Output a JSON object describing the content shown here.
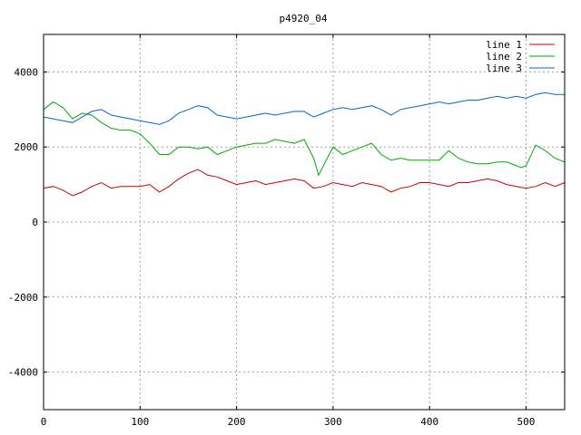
{
  "chart_data": {
    "type": "line",
    "title": "p4920_04",
    "xlabel": "",
    "ylabel": "",
    "xlim": [
      0,
      540
    ],
    "ylim": [
      -5000,
      5000
    ],
    "x_ticks": [
      0,
      100,
      200,
      300,
      400,
      500
    ],
    "y_ticks": [
      -4000,
      -2000,
      0,
      2000,
      4000
    ],
    "grid": true,
    "legend_position": "top-right",
    "series": [
      {
        "name": "line 1",
        "color": "#cc0000",
        "x": [
          0,
          10,
          20,
          30,
          40,
          50,
          60,
          70,
          80,
          90,
          100,
          110,
          120,
          130,
          140,
          150,
          160,
          170,
          180,
          190,
          200,
          210,
          220,
          230,
          240,
          250,
          260,
          270,
          280,
          290,
          300,
          310,
          320,
          330,
          340,
          350,
          360,
          370,
          380,
          390,
          400,
          410,
          420,
          430,
          440,
          450,
          460,
          470,
          480,
          490,
          500,
          510,
          520,
          530,
          540
        ],
        "y": [
          900,
          950,
          850,
          700,
          800,
          950,
          1050,
          900,
          950,
          950,
          950,
          1000,
          800,
          950,
          1150,
          1300,
          1400,
          1250,
          1200,
          1100,
          1000,
          1050,
          1100,
          1000,
          1050,
          1100,
          1150,
          1100,
          900,
          950,
          1050,
          1000,
          950,
          1050,
          1000,
          950,
          800,
          900,
          950,
          1050,
          1050,
          1000,
          950,
          1050,
          1050,
          1100,
          1150,
          1100,
          1000,
          950,
          900,
          950,
          1050,
          950,
          1050
        ]
      },
      {
        "name": "line 2",
        "color": "#00aa00",
        "x": [
          0,
          10,
          20,
          30,
          40,
          50,
          60,
          70,
          80,
          90,
          100,
          110,
          120,
          130,
          140,
          150,
          160,
          170,
          180,
          190,
          200,
          210,
          220,
          230,
          240,
          250,
          260,
          270,
          280,
          285,
          290,
          300,
          310,
          320,
          330,
          340,
          350,
          360,
          370,
          380,
          390,
          400,
          410,
          420,
          430,
          440,
          450,
          460,
          470,
          480,
          490,
          495,
          500,
          510,
          520,
          530,
          540
        ],
        "y": [
          3000,
          3200,
          3050,
          2750,
          2900,
          2850,
          2650,
          2500,
          2450,
          2450,
          2350,
          2100,
          1800,
          1800,
          2000,
          2000,
          1950,
          2000,
          1800,
          1900,
          2000,
          2050,
          2100,
          2100,
          2200,
          2150,
          2100,
          2200,
          1700,
          1250,
          1500,
          2000,
          1800,
          1900,
          2000,
          2100,
          1800,
          1650,
          1700,
          1650,
          1650,
          1650,
          1650,
          1900,
          1700,
          1600,
          1550,
          1550,
          1600,
          1600,
          1500,
          1450,
          1500,
          2050,
          1900,
          1700,
          1600
        ]
      },
      {
        "name": "line 3",
        "color": "#0066cc",
        "x": [
          0,
          10,
          20,
          30,
          40,
          50,
          60,
          70,
          80,
          90,
          100,
          110,
          120,
          130,
          140,
          150,
          160,
          170,
          180,
          190,
          200,
          210,
          220,
          230,
          240,
          250,
          260,
          270,
          280,
          290,
          300,
          310,
          320,
          330,
          340,
          350,
          360,
          370,
          380,
          390,
          400,
          410,
          420,
          430,
          440,
          450,
          460,
          470,
          480,
          490,
          500,
          510,
          520,
          530,
          540
        ],
        "y": [
          2800,
          2750,
          2700,
          2650,
          2800,
          2950,
          3000,
          2850,
          2800,
          2750,
          2700,
          2650,
          2600,
          2700,
          2900,
          3000,
          3100,
          3050,
          2850,
          2800,
          2750,
          2800,
          2850,
          2900,
          2850,
          2900,
          2950,
          2950,
          2800,
          2900,
          3000,
          3050,
          3000,
          3050,
          3100,
          3000,
          2850,
          3000,
          3050,
          3100,
          3150,
          3200,
          3150,
          3200,
          3250,
          3250,
          3300,
          3350,
          3300,
          3350,
          3300,
          3400,
          3450,
          3400,
          3400
        ]
      }
    ]
  }
}
